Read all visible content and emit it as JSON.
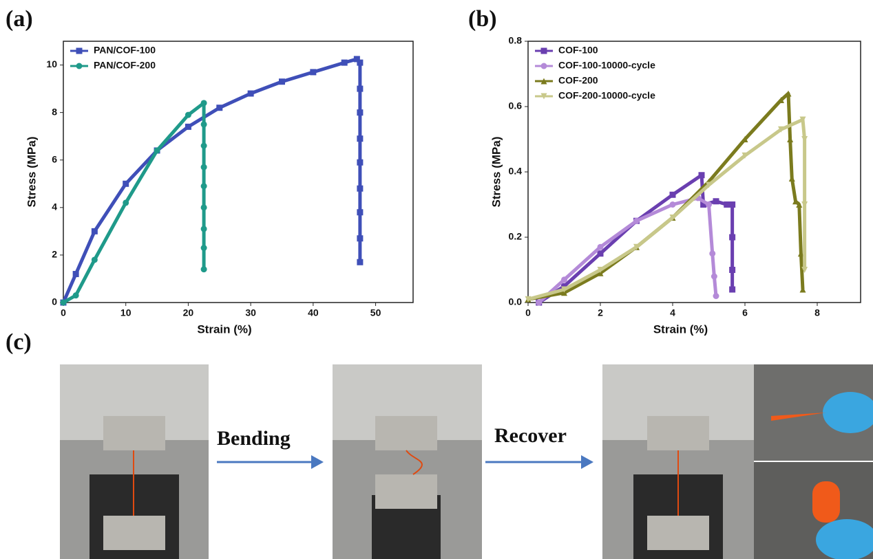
{
  "panel_labels": [
    "(a)",
    "(b)",
    "(c)"
  ],
  "chart_data": [
    {
      "type": "line",
      "xlabel": "Strain (%)",
      "ylabel": "Stress (MPa)",
      "xlim": [
        0,
        56
      ],
      "xticks": [
        0,
        10,
        20,
        30,
        40,
        50
      ],
      "ylim": [
        0,
        11
      ],
      "yticks": [
        0,
        2,
        4,
        6,
        8,
        10
      ],
      "legend": "upper left",
      "series": [
        {
          "name": "PAN/COF-100",
          "color": "#3f4fb8",
          "marker": "square",
          "x": [
            0,
            2,
            5,
            10,
            15,
            20,
            25,
            30,
            35,
            40,
            45,
            47,
            47.5,
            47.5,
            47.5,
            47.5,
            47.5,
            47.5,
            47.5,
            47.5,
            47.5
          ],
          "values": [
            0,
            1.2,
            3,
            5,
            6.4,
            7.4,
            8.2,
            8.8,
            9.3,
            9.7,
            10.1,
            10.25,
            10.1,
            9.0,
            8.0,
            6.9,
            5.9,
            4.8,
            3.8,
            2.7,
            1.7
          ]
        },
        {
          "name": "PAN/COF-200",
          "color": "#1f9a8a",
          "marker": "circle",
          "x": [
            0,
            2,
            5,
            10,
            15,
            20,
            22.5,
            22.5,
            22.5,
            22.5,
            22.5,
            22.5,
            22.5,
            22.5,
            22.5
          ],
          "values": [
            0,
            0.3,
            1.8,
            4.2,
            6.4,
            7.9,
            8.4,
            7.5,
            6.6,
            5.7,
            4.9,
            4.0,
            3.1,
            2.3,
            1.4
          ]
        }
      ]
    },
    {
      "type": "line",
      "xlabel": "Strain (%)",
      "ylabel": "Stress (MPa)",
      "xlim": [
        0,
        9.2
      ],
      "xticks": [
        0,
        2,
        4,
        6,
        8
      ],
      "ylim": [
        0,
        0.8
      ],
      "yticks": [
        {
          "value": 0,
          "label": "0.0"
        },
        0.2,
        0.4,
        0.6,
        0.8
      ],
      "legend": "upper left",
      "series": [
        {
          "name": "COF-100",
          "color": "#6a3fb0",
          "marker": "square",
          "x": [
            0.3,
            1,
            2,
            3,
            4,
            4.8,
            4.85,
            5.2,
            5.5,
            5.65,
            5.65,
            5.65,
            5.65
          ],
          "values": [
            0,
            0.05,
            0.15,
            0.25,
            0.33,
            0.39,
            0.3,
            0.31,
            0.3,
            0.3,
            0.2,
            0.1,
            0.04
          ]
        },
        {
          "name": "COF-100-10000-cycle",
          "color": "#b48ad8",
          "marker": "circle",
          "x": [
            0.3,
            1,
            2,
            3,
            4,
            4.7,
            5,
            5.1,
            5.15,
            5.2
          ],
          "values": [
            0,
            0.07,
            0.17,
            0.25,
            0.3,
            0.32,
            0.3,
            0.15,
            0.08,
            0.02
          ]
        },
        {
          "name": "COF-200",
          "color": "#7b7b1e",
          "marker": "triangle",
          "x": [
            0,
            1,
            2,
            3,
            4,
            5,
            6,
            7,
            7.2,
            7.25,
            7.3,
            7.4,
            7.5,
            7.55,
            7.6
          ],
          "values": [
            0.01,
            0.03,
            0.09,
            0.17,
            0.26,
            0.37,
            0.5,
            0.62,
            0.64,
            0.5,
            0.38,
            0.31,
            0.3,
            0.15,
            0.04
          ]
        },
        {
          "name": "COF-200-10000-cycle",
          "color": "#c8c88a",
          "marker": "triangle-down",
          "x": [
            0,
            1,
            2,
            3,
            4,
            5,
            6,
            7,
            7.6,
            7.65,
            7.65,
            7.65
          ],
          "values": [
            0.01,
            0.04,
            0.1,
            0.17,
            0.26,
            0.36,
            0.45,
            0.53,
            0.56,
            0.5,
            0.3,
            0.1
          ]
        }
      ]
    }
  ],
  "photo_panel": {
    "steps": [
      "Bending",
      "Recover"
    ]
  }
}
